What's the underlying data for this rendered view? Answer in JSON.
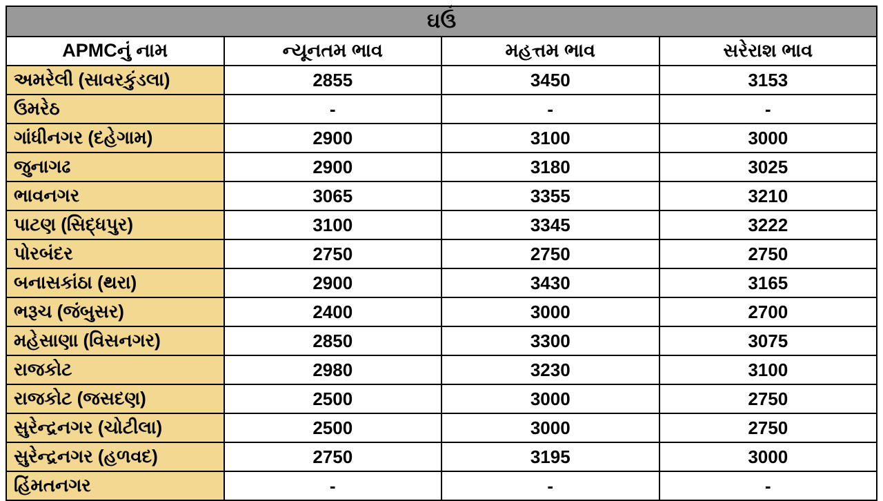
{
  "table": {
    "title": "ઘઉં",
    "columns": [
      "APMCનું નામ",
      "ન્યૂનતમ ભાવ",
      "મહત્તમ ભાવ",
      "સરેરાશ ભાવ"
    ],
    "rows": [
      {
        "name": "અમરેલી (સાવરકુંડલા)",
        "min": "2855",
        "max": "3450",
        "avg": "3153"
      },
      {
        "name": "ઉમરેઠ",
        "min": "-",
        "max": "-",
        "avg": "-"
      },
      {
        "name": "ગાંધીનગર (દહેગામ)",
        "min": "2900",
        "max": "3100",
        "avg": "3000"
      },
      {
        "name": "જુનાગઢ",
        "min": "2900",
        "max": "3180",
        "avg": "3025"
      },
      {
        "name": "ભાવનગર",
        "min": "3065",
        "max": "3355",
        "avg": "3210"
      },
      {
        "name": "પાટણ (સિદ્ધપુર)",
        "min": "3100",
        "max": "3345",
        "avg": "3222"
      },
      {
        "name": "પોરબંદર",
        "min": "2750",
        "max": "2750",
        "avg": "2750"
      },
      {
        "name": "બનાસકાંઠા (થરા)",
        "min": "2900",
        "max": "3430",
        "avg": "3165"
      },
      {
        "name": "ભરૂચ (જંબુસર)",
        "min": "2400",
        "max": "3000",
        "avg": "2700"
      },
      {
        "name": "મહેસાણા (વિસનગર)",
        "min": "2850",
        "max": "3300",
        "avg": "3075"
      },
      {
        "name": "રાજકોટ",
        "min": "2980",
        "max": "3230",
        "avg": "3100"
      },
      {
        "name": "રાજકોટ (જસદણ)",
        "min": "2500",
        "max": "3000",
        "avg": "2750"
      },
      {
        "name": "સુરેન્દ્રનગર (ચોટીલા)",
        "min": "2500",
        "max": "3000",
        "avg": "2750"
      },
      {
        "name": "સુરેન્દ્રનગર (હળવદ)",
        "min": "2750",
        "max": "3195",
        "avg": "3000"
      },
      {
        "name": "હિંમતનગર",
        "min": "-",
        "max": "-",
        "avg": "-"
      }
    ],
    "colors": {
      "title_bg": "#999999",
      "header_bg": "#ffffff",
      "name_col_bg": "#f2d891",
      "value_col_bg": "#ffffff",
      "border": "#000000",
      "text": "#000000"
    },
    "fonts": {
      "title_size": 30,
      "header_size": 27,
      "cell_size": 26,
      "weight": "bold"
    },
    "column_widths": [
      "28%",
      "24%",
      "24%",
      "24%"
    ]
  }
}
